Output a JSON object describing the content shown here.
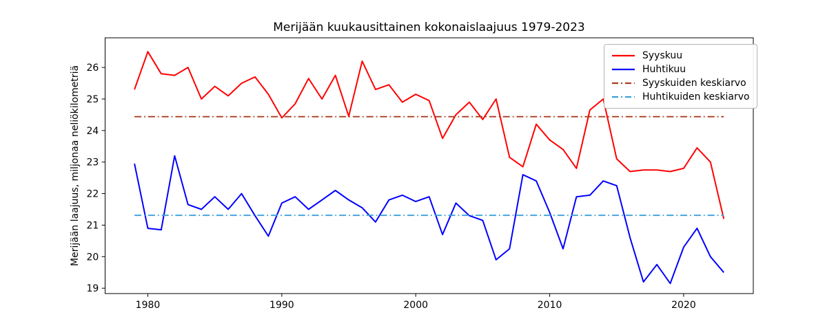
{
  "chart_data": {
    "type": "line",
    "title": "Merijään kuukausittainen kokonaislaajuus 1979-2023",
    "xlabel": "",
    "ylabel": "Merijään laajuus, miljonaa neliökilometriä",
    "grid": false,
    "legend_position": "upper right",
    "xlim": [
      1976.8,
      2025.2
    ],
    "ylim": [
      18.83,
      26.94
    ],
    "xticks": [
      1980,
      1990,
      2000,
      2010,
      2020
    ],
    "yticks": [
      19,
      20,
      21,
      22,
      23,
      24,
      25,
      26
    ],
    "x": [
      1979,
      1980,
      1981,
      1982,
      1983,
      1984,
      1985,
      1986,
      1987,
      1988,
      1989,
      1990,
      1991,
      1992,
      1993,
      1994,
      1995,
      1996,
      1997,
      1998,
      1999,
      2000,
      2001,
      2002,
      2003,
      2004,
      2005,
      2006,
      2007,
      2008,
      2009,
      2010,
      2011,
      2012,
      2013,
      2014,
      2015,
      2016,
      2017,
      2018,
      2019,
      2020,
      2021,
      2022,
      2023
    ],
    "series": [
      {
        "name": "Syyskuu",
        "color": "#ff0000",
        "style": "solid",
        "values": [
          25.3,
          26.5,
          25.8,
          25.75,
          26.0,
          25.0,
          25.4,
          25.1,
          25.5,
          25.7,
          25.15,
          24.4,
          24.85,
          25.65,
          25.0,
          25.75,
          24.45,
          26.2,
          25.3,
          25.45,
          24.9,
          25.15,
          24.95,
          23.75,
          24.5,
          24.9,
          24.35,
          25.0,
          23.15,
          22.85,
          24.2,
          23.7,
          23.4,
          22.8,
          24.65,
          25.0,
          23.1,
          22.7,
          22.75,
          22.75,
          22.7,
          22.8,
          23.45,
          23.0,
          21.2
        ]
      },
      {
        "name": "Huhtikuu",
        "color": "#0000ff",
        "style": "solid",
        "values": [
          22.95,
          20.9,
          20.85,
          23.2,
          21.65,
          21.5,
          21.9,
          21.5,
          22.0,
          21.3,
          20.65,
          21.7,
          21.9,
          21.5,
          21.8,
          22.1,
          21.8,
          21.55,
          21.1,
          21.8,
          21.95,
          21.75,
          21.9,
          20.7,
          21.7,
          21.3,
          21.15,
          19.9,
          20.25,
          22.6,
          22.4,
          21.4,
          20.25,
          21.9,
          21.95,
          22.4,
          22.25,
          20.6,
          19.2,
          19.75,
          19.15,
          20.3,
          20.9,
          20.0,
          19.5
        ]
      }
    ],
    "mean_lines": [
      {
        "label": "Syyskuiden keskiarvo",
        "color": "#aa3b1e",
        "style": "dashdot",
        "value": 24.44
      },
      {
        "label": "Huhtikuiden keskiarvo",
        "color": "#3a9fd8",
        "style": "dashdot",
        "value": 21.31
      }
    ]
  }
}
